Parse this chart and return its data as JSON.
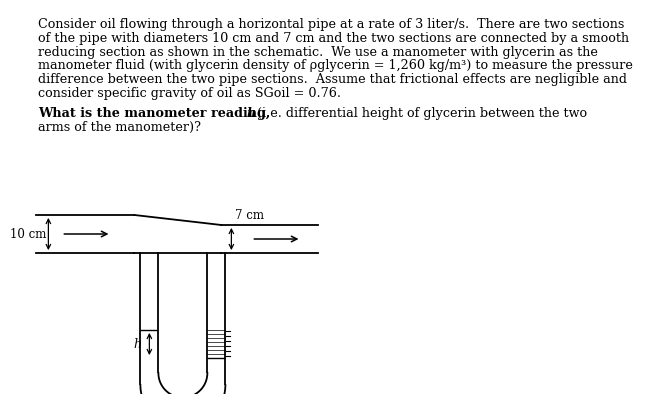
{
  "background_color": "#ffffff",
  "paragraph1_lines": [
    "Consider oil flowing through a horizontal pipe at a rate of 3 liter/s.  There are two sections",
    "of the pipe with diameters 10 cm and 7 cm and the two sections are connected by a smooth",
    "reducing section as shown in the schematic.  We use a manometer with glycerin as the",
    "manometer fluid (with glycerin density of ρglycerin = 1,260 kg/m³) to measure the pressure",
    "difference between the two pipe sections.  Assume that frictional effects are negligible and",
    "consider specific gravity of oil as SGoil = 0.76."
  ],
  "paragraph2_bold": "What is the manometer reading, h",
  "paragraph2_italic_h": "h",
  "paragraph2_rest": " (i.e. differential height of glycerin between the two",
  "paragraph2_line2": "arms of the manometer)?",
  "label_10cm": "10 cm",
  "label_7cm": "7 cm",
  "label_h": "h",
  "pipe_color": "#000000",
  "text_fontsize": 9.2,
  "label_fontsize": 8.5,
  "line_width": 1.3
}
